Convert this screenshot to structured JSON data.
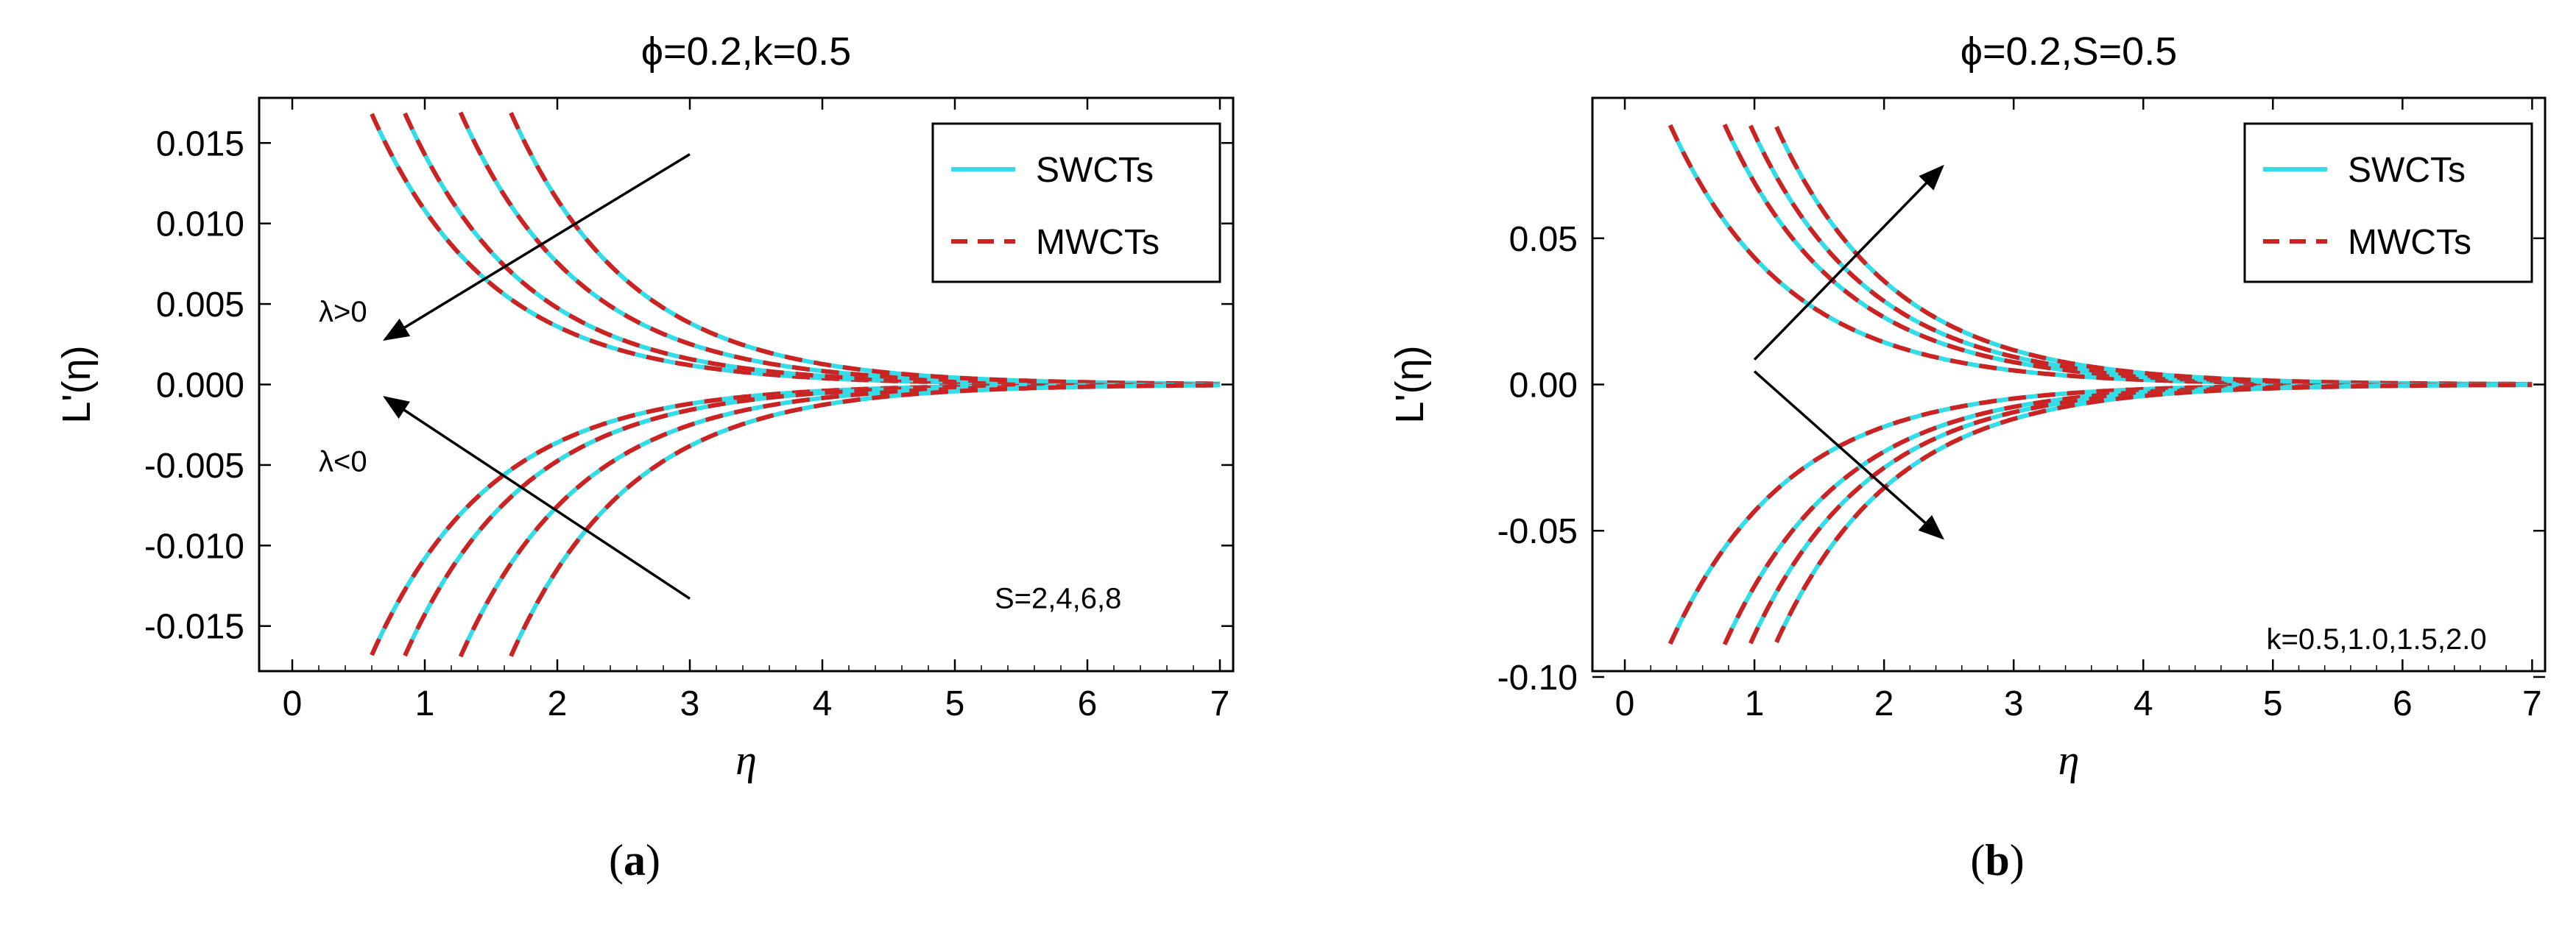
{
  "figure": {
    "label_a": {
      "open": "(",
      "letter": "a",
      "close": ")"
    },
    "label_b": {
      "open": "(",
      "letter": "b",
      "close": ")"
    }
  },
  "colors": {
    "swcts": "#33dde8",
    "mwcts": "#cc2222",
    "axis": "#000000",
    "arrow": "#000000"
  },
  "chart_data": [
    {
      "id": "a",
      "type": "line",
      "title": "ϕ=0.2,k=0.5",
      "xlabel": "η",
      "ylabel": "L'(η)",
      "xlim": [
        -0.25,
        7.1
      ],
      "ylim": [
        -0.0178,
        0.0178
      ],
      "xticks": [
        0,
        1,
        2,
        3,
        4,
        5,
        6,
        7
      ],
      "yticks": [
        0.015,
        0.01,
        0.005,
        0.0,
        -0.005,
        -0.01,
        -0.015
      ],
      "ytick_labels": [
        "0.015",
        "0.010",
        "0.005",
        "0.000",
        "-0.005",
        "-0.010",
        "-0.015"
      ],
      "legend": {
        "position": "top-right",
        "entries": [
          "SWCTs",
          "MWCTs"
        ]
      },
      "model": "y = A*exp(-b*x)",
      "decay_rate": 1.1,
      "series": [
        {
          "name": "S=2, λ>0",
          "A": 0.0325,
          "x_start": 0.6
        },
        {
          "name": "S=4, λ>0",
          "A": 0.0429,
          "x_start": 0.85
        },
        {
          "name": "S=6, λ>0",
          "A": 0.0683,
          "x_start": 1.27
        },
        {
          "name": "S=8, λ>0",
          "A": 0.1036,
          "x_start": 1.65
        },
        {
          "name": "S=2, λ<0",
          "A": -0.0325,
          "x_start": 0.6
        },
        {
          "name": "S=4, λ<0",
          "A": -0.0429,
          "x_start": 0.85
        },
        {
          "name": "S=6, λ<0",
          "A": -0.0683,
          "x_start": 1.27
        },
        {
          "name": "S=8, λ<0",
          "A": -0.1036,
          "x_start": 1.65
        }
      ],
      "arrows": [
        {
          "from": [
            3.0,
            0.0143
          ],
          "to": [
            0.7,
            0.0028
          ]
        },
        {
          "from": [
            3.0,
            -0.0133
          ],
          "to": [
            0.7,
            -0.0008
          ]
        }
      ],
      "annotations": [
        {
          "text": "λ>0",
          "x": 0.2,
          "y": 0.0039
        },
        {
          "text": "λ<0",
          "x": 0.2,
          "y": -0.0054
        },
        {
          "text": "S=2,4,6,8",
          "x": 5.3,
          "y": -0.0139
        }
      ]
    },
    {
      "id": "b",
      "type": "line",
      "title": "ϕ=0.2,S=0.5",
      "xlabel": "η",
      "ylabel": "L'(η)",
      "xlim": [
        -0.25,
        7.1
      ],
      "ylim": [
        -0.098,
        0.098
      ],
      "xticks": [
        0,
        1,
        2,
        3,
        4,
        5,
        6,
        7
      ],
      "yticks": [
        0.05,
        0.0,
        -0.05,
        -0.1
      ],
      "ytick_labels": [
        "0.05",
        "0.00",
        "-0.05",
        "-0.10"
      ],
      "legend": {
        "position": "top-right",
        "entries": [
          "SWCTs",
          "MWCTs"
        ]
      },
      "model": "y = A*exp(-b*x)",
      "decay_rate": 1.1,
      "series": [
        {
          "name": "k=0.5, +",
          "A": 0.1303,
          "x_start": 0.35
        },
        {
          "name": "k=1.0, +",
          "A": 0.2073,
          "x_start": 0.77
        },
        {
          "name": "k=1.5, +",
          "A": 0.2572,
          "x_start": 0.97
        },
        {
          "name": "k=2.0, +",
          "A": 0.3191,
          "x_start": 1.17
        },
        {
          "name": "k=0.5, -",
          "A": -0.1303,
          "x_start": 0.35
        },
        {
          "name": "k=1.0, -",
          "A": -0.2073,
          "x_start": 0.77
        },
        {
          "name": "k=1.5, -",
          "A": -0.2572,
          "x_start": 0.97
        },
        {
          "name": "k=2.0, -",
          "A": -0.3191,
          "x_start": 1.17
        }
      ],
      "arrows": [
        {
          "from": [
            1.0,
            0.0085
          ],
          "to": [
            2.45,
            0.0745
          ]
        },
        {
          "from": [
            1.0,
            0.0045
          ],
          "to": [
            2.45,
            -0.0525
          ]
        }
      ],
      "annotations": [
        {
          "text": "k=0.5,1.0,1.5,2.0",
          "x": 4.95,
          "y": -0.0905
        }
      ]
    }
  ]
}
